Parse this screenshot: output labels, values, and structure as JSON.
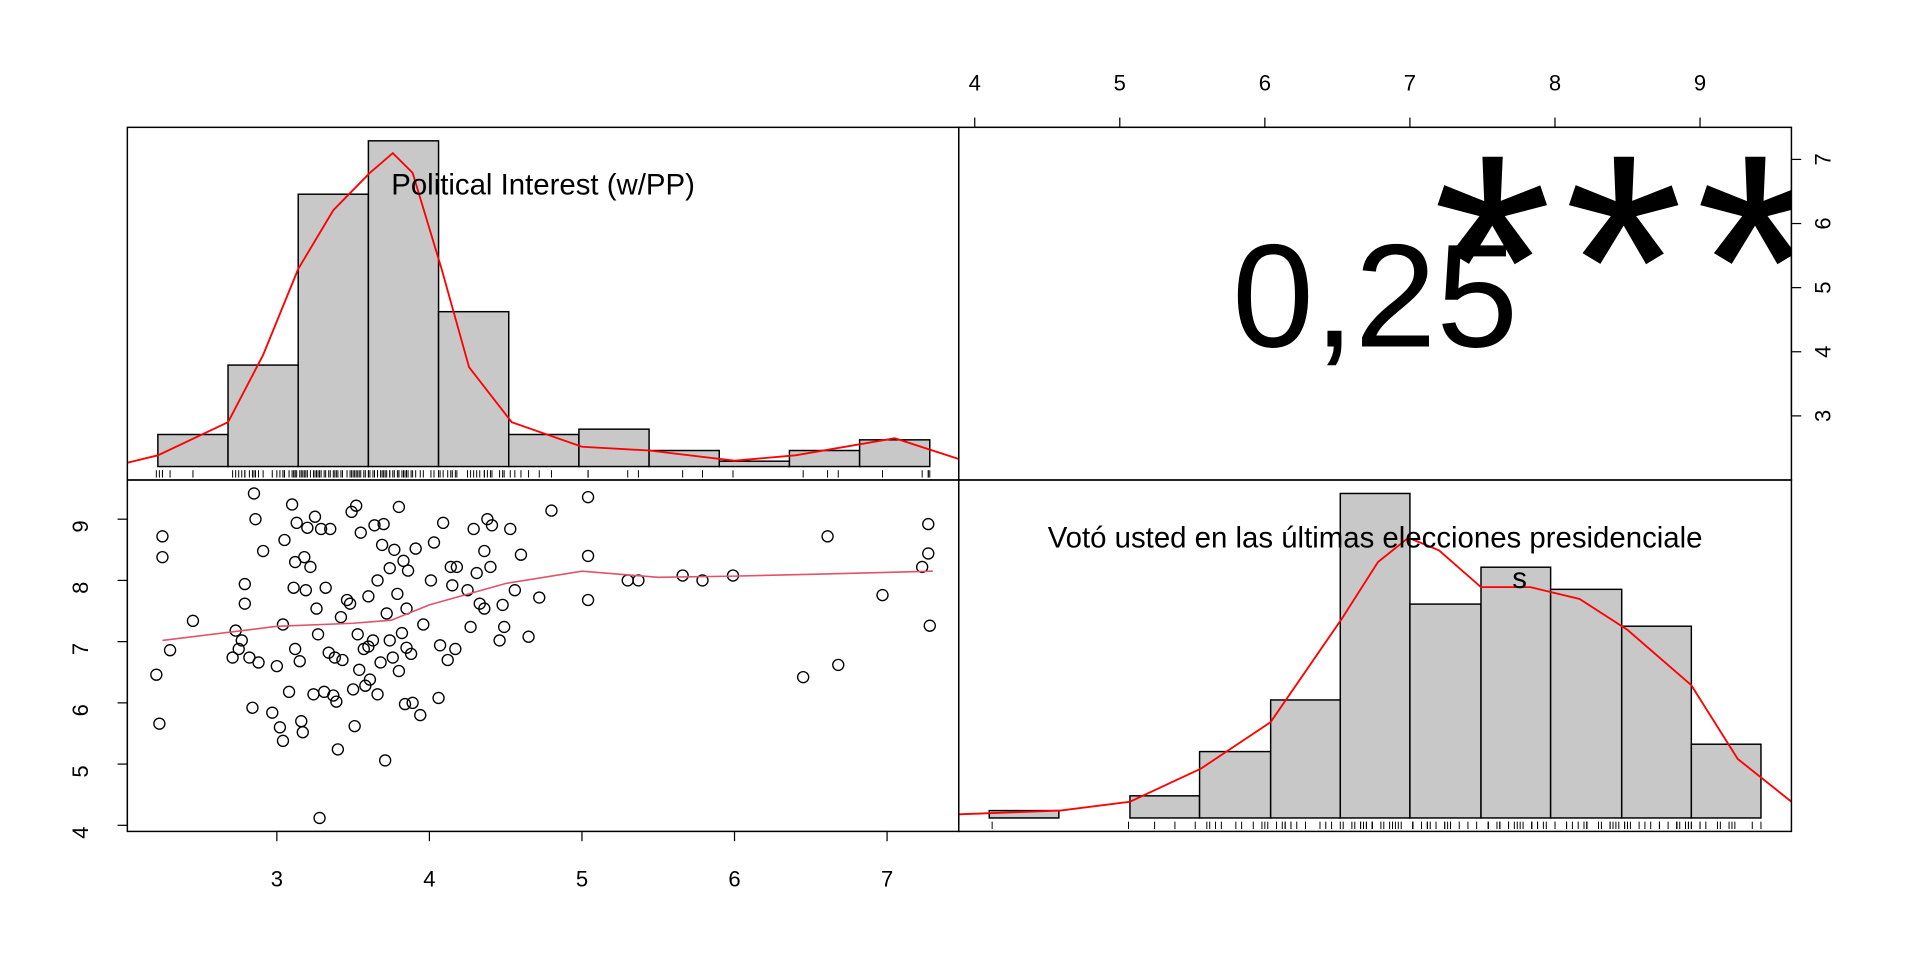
{
  "chart_data": [
    {
      "type": "histogram",
      "label_lines": [
        "Political Interest (w/PP)"
      ],
      "bins": [
        2.22,
        2.68,
        3.14,
        3.6,
        4.06,
        4.52,
        4.98,
        5.44,
        5.9,
        6.36,
        6.82,
        7.28
      ],
      "counts": [
        6,
        19,
        51,
        61,
        29,
        6,
        7,
        3,
        1,
        3,
        5
      ],
      "color": "#c8c8c8",
      "density": {
        "color": "#ff0000",
        "x": [
          2.02,
          2.22,
          2.68,
          2.91,
          3.14,
          3.37,
          3.61,
          3.76,
          3.89,
          4.08,
          4.26,
          4.54,
          5.0,
          5.44,
          6.0,
          6.4,
          7.05,
          7.47
        ],
        "y": [
          0.7,
          2.1,
          8.3,
          20.9,
          37,
          48,
          55,
          58.7,
          55,
          37,
          18.6,
          8.3,
          3.7,
          3,
          1.1,
          2.1,
          5.3,
          1.4
        ]
      },
      "xlim": [
        2.02,
        7.47
      ],
      "rug": "x"
    },
    {
      "type": "correlation",
      "value": 0.25,
      "value_label": "0,25",
      "stars": "***",
      "star_color": "#df536b",
      "xlim": [
        3.89,
        9.63
      ],
      "xticks": [
        4,
        5,
        6,
        7,
        8,
        9
      ],
      "ylim": [
        2.0,
        7.5
      ],
      "yticks": [
        3,
        4,
        5,
        6,
        7
      ]
    },
    {
      "type": "scatter",
      "x": [
        2.21,
        2.23,
        2.25,
        2.25,
        2.3,
        2.45,
        2.73,
        2.75,
        2.77,
        2.79,
        2.79,
        2.71,
        2.82,
        2.84,
        2.85,
        2.86,
        2.88,
        2.91,
        2.97,
        3.0,
        3.02,
        3.04,
        3.04,
        3.05,
        3.08,
        3.1,
        3.11,
        3.12,
        3.13,
        3.12,
        3.15,
        3.16,
        3.17,
        3.18,
        3.19,
        3.2,
        3.22,
        3.24,
        3.25,
        3.26,
        3.27,
        3.28,
        3.29,
        3.31,
        3.32,
        3.34,
        3.35,
        3.37,
        3.38,
        3.39,
        3.4,
        3.42,
        3.43,
        3.46,
        3.48,
        3.49,
        3.5,
        3.51,
        3.52,
        3.53,
        3.54,
        3.55,
        3.57,
        3.58,
        3.6,
        3.6,
        3.61,
        3.63,
        3.64,
        3.66,
        3.66,
        3.68,
        3.69,
        3.7,
        3.71,
        3.72,
        3.74,
        3.74,
        3.76,
        3.77,
        3.79,
        3.8,
        3.8,
        3.82,
        3.83,
        3.84,
        3.85,
        3.85,
        3.86,
        3.88,
        3.89,
        3.91,
        3.94,
        3.96,
        4.01,
        4.03,
        4.06,
        4.07,
        4.09,
        4.12,
        4.14,
        4.15,
        4.17,
        4.18,
        4.25,
        4.27,
        4.29,
        4.31,
        4.33,
        4.36,
        4.36,
        4.38,
        4.4,
        4.41,
        4.46,
        4.48,
        4.49,
        4.53,
        4.56,
        4.6,
        4.65,
        4.72,
        4.8,
        5.04,
        5.04,
        5.04,
        5.3,
        5.37,
        5.66,
        5.79,
        5.99,
        6.45,
        6.61,
        6.68,
        6.97,
        7.23,
        7.27,
        7.27,
        7.28
      ],
      "y": [
        6.46,
        5.66,
        8.72,
        8.38,
        6.86,
        7.34,
        7.18,
        6.88,
        7.02,
        7.94,
        7.62,
        6.74,
        6.74,
        5.92,
        9.42,
        9.0,
        6.66,
        8.48,
        5.84,
        6.6,
        5.6,
        5.38,
        7.28,
        8.66,
        6.18,
        9.24,
        7.88,
        6.88,
        8.94,
        8.3,
        6.68,
        5.7,
        5.52,
        8.38,
        7.84,
        8.86,
        8.22,
        6.14,
        9.04,
        7.54,
        7.12,
        4.12,
        8.84,
        6.18,
        7.88,
        6.82,
        8.84,
        6.12,
        6.74,
        6.02,
        5.24,
        7.4,
        6.7,
        7.68,
        7.62,
        9.12,
        6.22,
        5.62,
        9.22,
        7.12,
        6.54,
        8.78,
        6.88,
        6.28,
        7.74,
        6.92,
        6.38,
        7.02,
        8.9,
        6.14,
        8.0,
        6.66,
        8.58,
        8.92,
        5.06,
        7.46,
        8.2,
        7.02,
        6.74,
        8.5,
        7.78,
        6.52,
        9.2,
        7.14,
        8.32,
        5.98,
        7.54,
        6.9,
        8.16,
        6.8,
        6.0,
        8.52,
        5.8,
        7.28,
        8.0,
        8.62,
        6.08,
        6.94,
        8.94,
        6.7,
        8.22,
        7.92,
        6.88,
        8.22,
        7.84,
        7.24,
        8.84,
        8.12,
        7.62,
        8.48,
        7.54,
        9.0,
        8.22,
        8.9,
        7.02,
        7.6,
        7.24,
        8.84,
        7.84,
        8.42,
        7.08,
        7.72,
        9.14,
        9.36,
        8.4,
        7.68,
        8.0,
        8.0,
        8.08,
        8.0,
        8.08,
        6.42,
        8.72,
        6.62,
        7.76,
        8.22,
        8.92,
        8.44,
        7.26
      ],
      "smooth": {
        "color": "#df536b",
        "x": [
          2.25,
          3.0,
          3.5,
          3.75,
          4.0,
          4.5,
          5.0,
          5.5,
          6.0,
          6.5,
          7.3
        ],
        "y": [
          7.02,
          7.25,
          7.3,
          7.35,
          7.6,
          7.95,
          8.15,
          8.05,
          8.07,
          8.1,
          8.15
        ]
      },
      "xlim": [
        2.02,
        7.47
      ],
      "xticks": [
        3,
        4,
        5,
        6,
        7
      ],
      "ylim": [
        3.9,
        9.64
      ],
      "yticks": [
        4,
        5,
        6,
        7,
        8,
        9
      ]
    },
    {
      "type": "histogram",
      "label_lines": [
        "Votó usted en las últimas elecciones presidenciale",
        "s"
      ],
      "bins": [
        4.1,
        4.58,
        5.07,
        5.55,
        6.04,
        6.52,
        7.0,
        7.49,
        7.97,
        8.46,
        8.94,
        9.42
      ],
      "counts": [
        1,
        0,
        3,
        9,
        16,
        44,
        29,
        34,
        31,
        26,
        10
      ],
      "color": "#c8c8c8",
      "density": {
        "color": "#ff0000",
        "x": [
          3.89,
          4.59,
          5.07,
          5.56,
          6.04,
          6.53,
          6.78,
          6.99,
          7.2,
          7.49,
          7.83,
          8.17,
          8.5,
          8.94,
          9.26,
          9.63
        ],
        "y": [
          0.5,
          1,
          2.2,
          6.7,
          13,
          27,
          34.7,
          38,
          36.3,
          31.3,
          31.3,
          29.7,
          25.5,
          18,
          8,
          2.2
        ]
      },
      "xlim": [
        3.89,
        9.63
      ],
      "rug": "y"
    }
  ]
}
